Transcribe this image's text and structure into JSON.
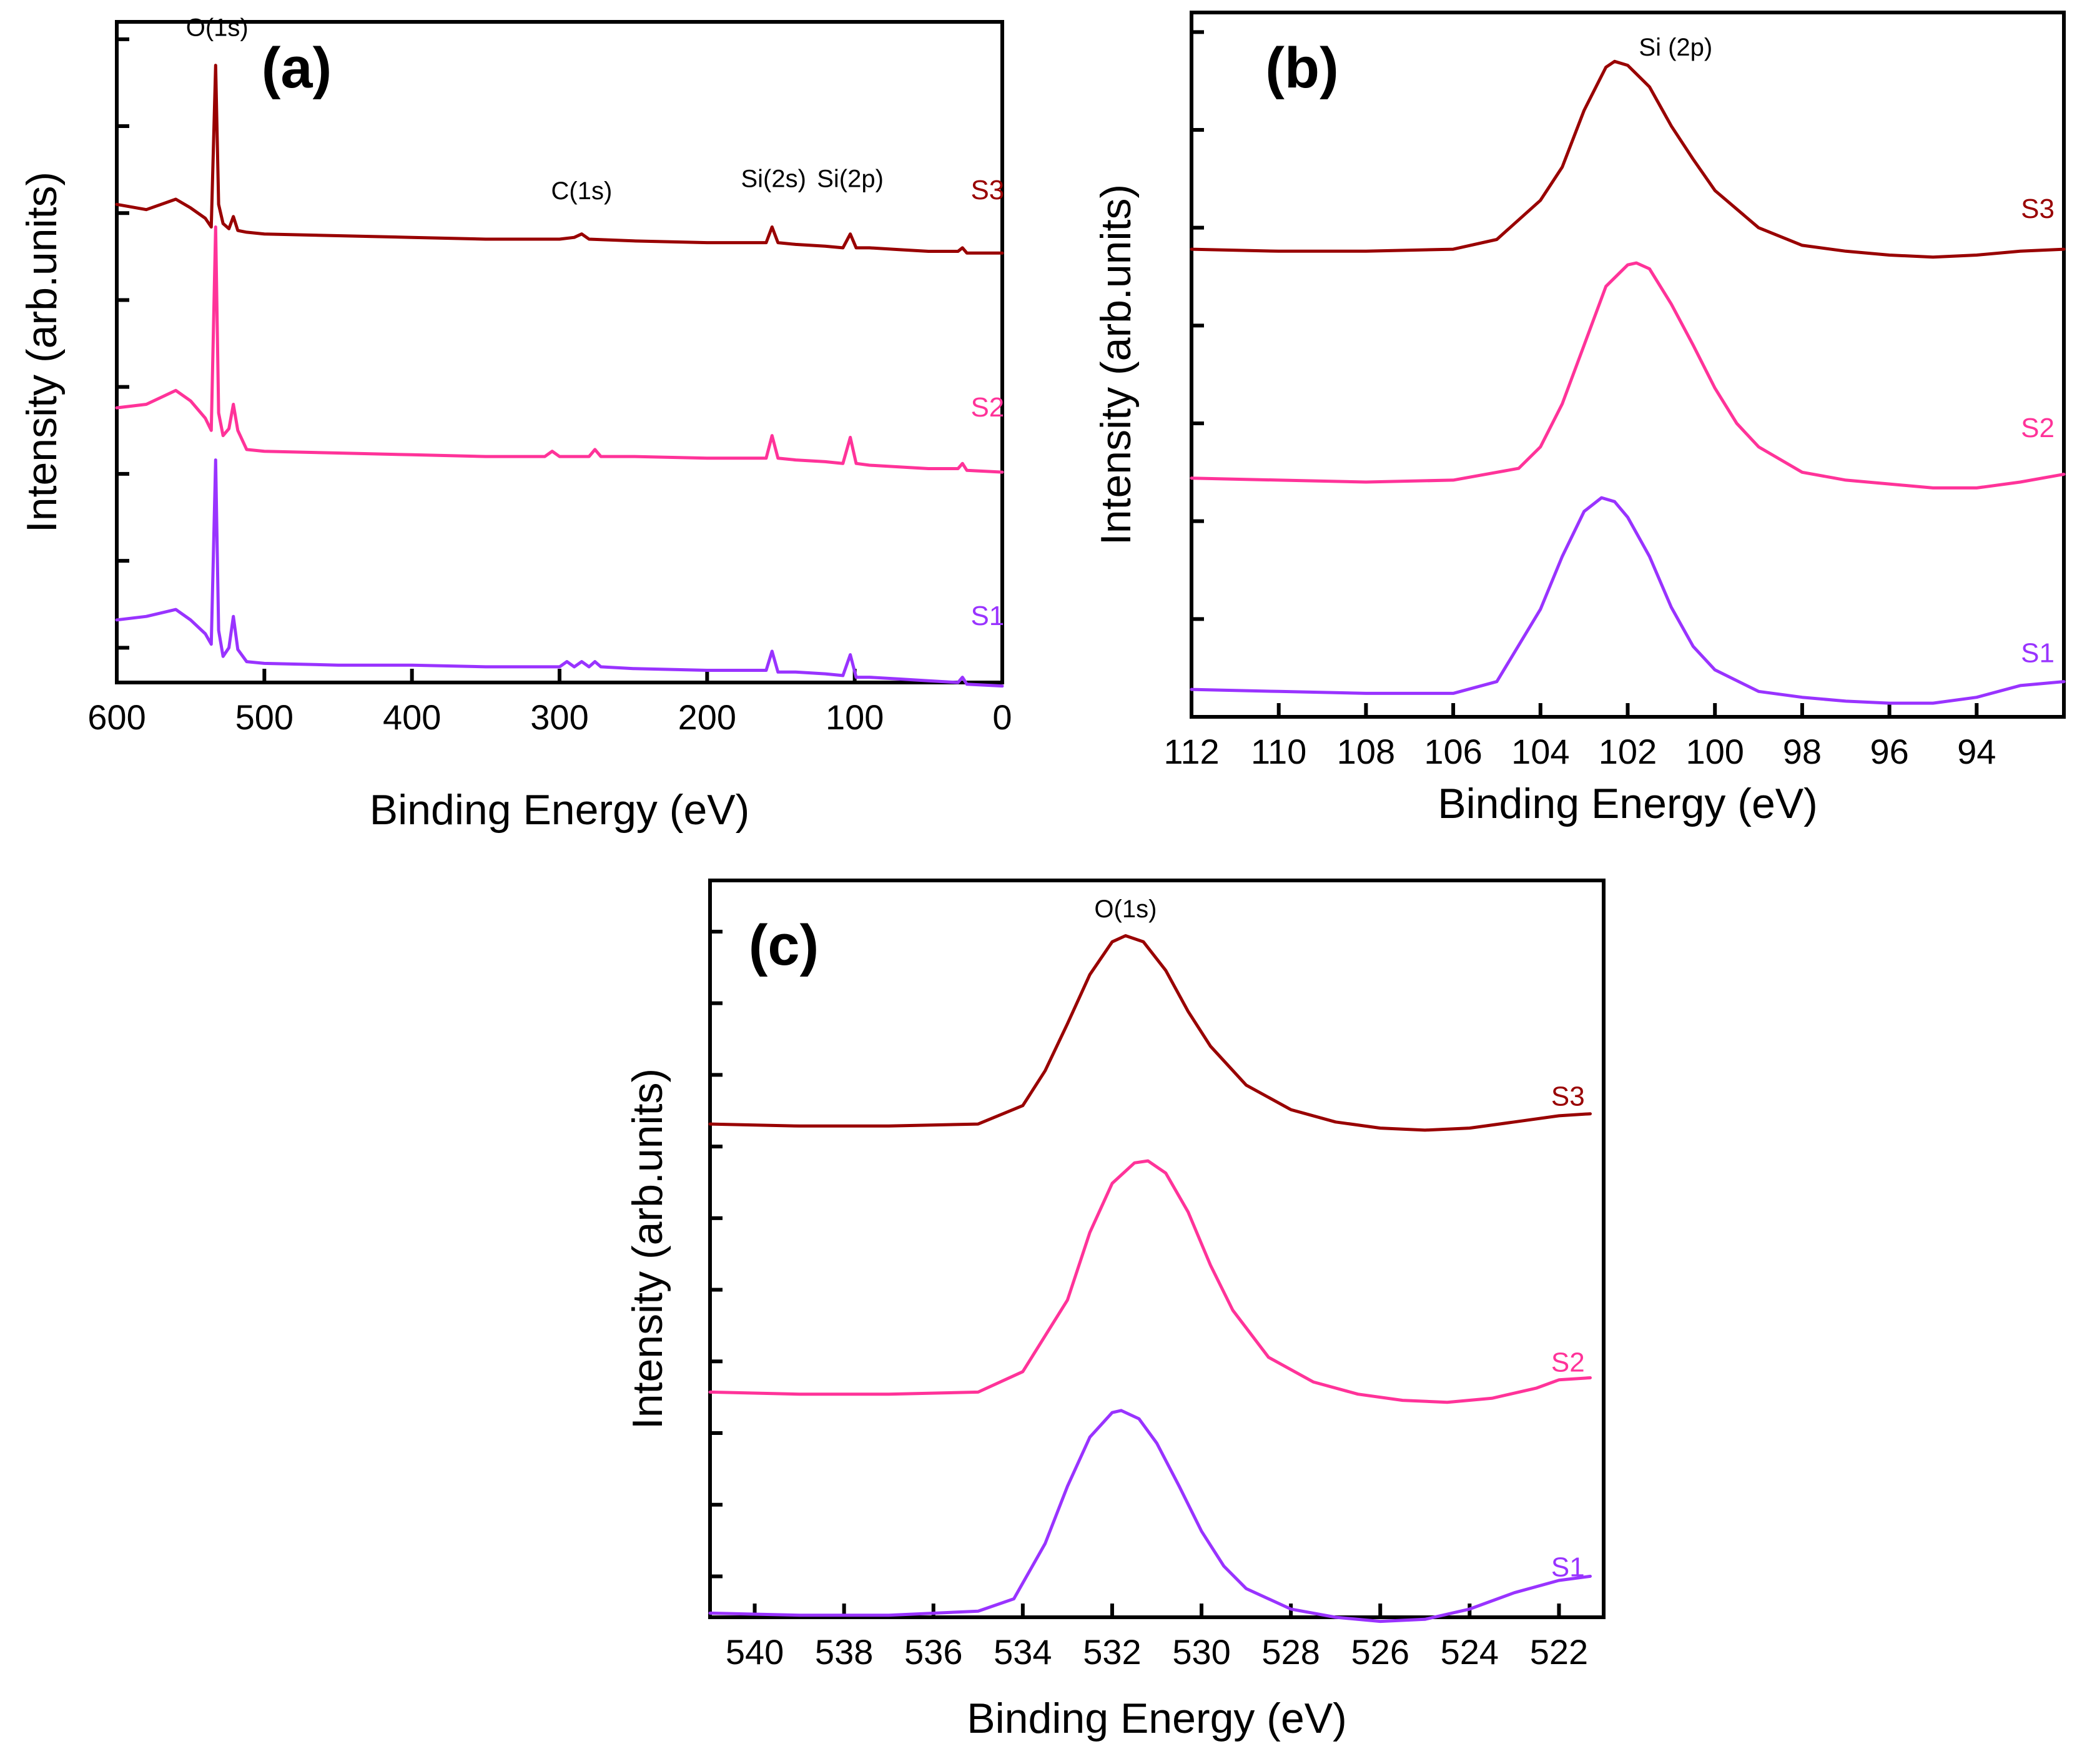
{
  "colors": {
    "S1": "#9933ff",
    "S2": "#ff3399",
    "S3": "#990000",
    "axis": "#000000"
  },
  "chart_data": [
    {
      "id": "a",
      "type": "line",
      "panel_label": "(a)",
      "xlabel": "Binding Energy (eV)",
      "ylabel": "Intensity (arb.units)",
      "xlim": [
        600,
        0
      ],
      "xticks": [
        600,
        500,
        400,
        300,
        200,
        100,
        0
      ],
      "xtick_labels": [
        "600",
        "500",
        "400",
        "300",
        "200",
        "100",
        "0"
      ],
      "ylim": [
        0,
        3.8
      ],
      "y_minor_ticks": [
        0.2,
        0.7,
        1.2,
        1.7,
        2.2,
        2.7,
        3.2,
        3.7
      ],
      "peak_labels": [
        {
          "text": "O(1s)",
          "x": 532,
          "y": 3.72
        },
        {
          "text": "C(1s)",
          "x": 285,
          "y": 2.78
        },
        {
          "text": "Si(2s)",
          "x": 155,
          "y": 2.85
        },
        {
          "text": "Si(2p)",
          "x": 103,
          "y": 2.85
        }
      ],
      "series": [
        {
          "name": "S3",
          "color_key": "S3",
          "label_x": 10,
          "label_y": 2.78,
          "x": [
            600,
            580,
            560,
            550,
            540,
            536,
            533,
            531,
            528,
            524,
            521,
            518,
            512,
            500,
            450,
            400,
            350,
            300,
            290,
            285,
            280,
            250,
            200,
            160,
            156,
            152,
            140,
            120,
            108,
            103,
            99,
            90,
            70,
            50,
            30,
            27,
            24,
            0
          ],
          "y": [
            2.75,
            2.72,
            2.78,
            2.73,
            2.67,
            2.62,
            3.55,
            2.75,
            2.64,
            2.61,
            2.68,
            2.6,
            2.59,
            2.58,
            2.57,
            2.56,
            2.55,
            2.55,
            2.56,
            2.58,
            2.55,
            2.54,
            2.53,
            2.53,
            2.62,
            2.53,
            2.52,
            2.51,
            2.5,
            2.58,
            2.5,
            2.5,
            2.49,
            2.48,
            2.48,
            2.5,
            2.47,
            2.47
          ]
        },
        {
          "name": "S2",
          "color_key": "S2",
          "label_x": 10,
          "label_y": 1.53,
          "x": [
            600,
            580,
            560,
            550,
            540,
            536,
            533,
            531,
            528,
            524,
            521,
            518,
            512,
            500,
            450,
            400,
            350,
            310,
            305,
            300,
            280,
            276,
            272,
            250,
            200,
            160,
            156,
            152,
            140,
            120,
            108,
            103,
            99,
            90,
            70,
            50,
            30,
            27,
            24,
            0
          ],
          "y": [
            1.58,
            1.6,
            1.68,
            1.62,
            1.52,
            1.45,
            2.62,
            1.55,
            1.42,
            1.46,
            1.6,
            1.45,
            1.34,
            1.33,
            1.32,
            1.31,
            1.3,
            1.3,
            1.33,
            1.3,
            1.3,
            1.34,
            1.3,
            1.3,
            1.29,
            1.29,
            1.42,
            1.29,
            1.28,
            1.27,
            1.26,
            1.41,
            1.26,
            1.25,
            1.24,
            1.23,
            1.23,
            1.26,
            1.22,
            1.21
          ]
        },
        {
          "name": "S1",
          "color_key": "S1",
          "label_x": 10,
          "label_y": 0.33,
          "x": [
            600,
            580,
            560,
            550,
            540,
            536,
            533,
            531,
            528,
            524,
            521,
            518,
            512,
            500,
            450,
            400,
            350,
            300,
            295,
            290,
            285,
            280,
            276,
            272,
            250,
            200,
            160,
            156,
            152,
            140,
            120,
            108,
            103,
            99,
            90,
            70,
            50,
            30,
            27,
            24,
            0
          ],
          "y": [
            0.36,
            0.38,
            0.42,
            0.36,
            0.28,
            0.22,
            1.28,
            0.3,
            0.15,
            0.2,
            0.38,
            0.19,
            0.12,
            0.11,
            0.1,
            0.1,
            0.09,
            0.09,
            0.12,
            0.09,
            0.12,
            0.09,
            0.12,
            0.09,
            0.08,
            0.07,
            0.07,
            0.18,
            0.06,
            0.06,
            0.05,
            0.04,
            0.16,
            0.03,
            0.03,
            0.02,
            0.01,
            0.0,
            0.03,
            -0.01,
            -0.02
          ]
        }
      ]
    },
    {
      "id": "b",
      "type": "line",
      "panel_label": "(b)",
      "xlabel": "Binding Energy (eV)",
      "ylabel": "Intensity (arb.units)",
      "xlim": [
        112,
        92
      ],
      "xticks": [
        112,
        110,
        108,
        106,
        104,
        102,
        100,
        98,
        96,
        94
      ],
      "xtick_labels": [
        "112",
        "110",
        "108",
        "106",
        "104",
        "102",
        "100",
        "98",
        "96",
        "94"
      ],
      "ylim": [
        0,
        3.6
      ],
      "y_minor_ticks": [
        0.5,
        1.0,
        1.5,
        2.0,
        2.5,
        3.0,
        3.5
      ],
      "peak_labels": [
        {
          "text": "Si (2p)",
          "x": 100.9,
          "y": 3.38
        }
      ],
      "series": [
        {
          "name": "S3",
          "color_key": "S3",
          "label_x": 92.6,
          "label_y": 2.55,
          "center": 102.3,
          "sigma": 1.55,
          "amp": 0.95,
          "base_left": 2.4,
          "base_right": 2.4,
          "dip_center": 95.0,
          "dip_sigma": 1.6,
          "dip_amp": -0.03,
          "x": [
            112,
            110,
            108,
            106,
            105,
            104,
            103.5,
            103,
            102.5,
            102.3,
            102,
            101.5,
            101,
            100.5,
            100,
            99,
            98,
            97,
            96,
            95,
            94,
            93,
            92
          ],
          "y": [
            2.39,
            2.38,
            2.38,
            2.39,
            2.44,
            2.64,
            2.81,
            3.1,
            3.32,
            3.35,
            3.33,
            3.22,
            3.02,
            2.85,
            2.69,
            2.5,
            2.41,
            2.38,
            2.36,
            2.35,
            2.36,
            2.38,
            2.39
          ]
        },
        {
          "name": "S2",
          "color_key": "S2",
          "label_x": 92.6,
          "label_y": 1.43,
          "x": [
            112,
            110,
            108,
            106,
            104.5,
            104,
            103.5,
            103,
            102.5,
            102,
            101.8,
            101.5,
            101,
            100.5,
            100,
            99.5,
            99,
            98,
            97,
            96,
            95,
            94,
            93,
            92
          ],
          "y": [
            1.22,
            1.21,
            1.2,
            1.21,
            1.27,
            1.38,
            1.6,
            1.9,
            2.2,
            2.31,
            2.32,
            2.29,
            2.11,
            1.9,
            1.68,
            1.5,
            1.38,
            1.25,
            1.21,
            1.19,
            1.17,
            1.17,
            1.2,
            1.24
          ]
        },
        {
          "name": "S1",
          "color_key": "S1",
          "label_x": 92.6,
          "label_y": 0.28,
          "x": [
            112,
            110,
            108,
            106,
            105,
            104,
            103.5,
            103,
            102.6,
            102.3,
            102,
            101.5,
            101,
            100.5,
            100,
            99,
            98,
            97,
            96,
            95,
            94,
            93,
            92
          ],
          "y": [
            0.14,
            0.13,
            0.12,
            0.12,
            0.18,
            0.55,
            0.82,
            1.05,
            1.12,
            1.1,
            1.02,
            0.82,
            0.56,
            0.36,
            0.24,
            0.13,
            0.1,
            0.08,
            0.07,
            0.07,
            0.1,
            0.16,
            0.18
          ]
        }
      ]
    },
    {
      "id": "c",
      "type": "line",
      "panel_label": "(c)",
      "xlabel": "Binding Energy (eV)",
      "ylabel": "Intensity (arb.units)",
      "xlim": [
        541,
        521
      ],
      "xticks": [
        540,
        538,
        536,
        534,
        532,
        530,
        528,
        526,
        524,
        522
      ],
      "xtick_labels": [
        "540",
        "538",
        "536",
        "534",
        "532",
        "530",
        "528",
        "526",
        "524",
        "522"
      ],
      "ylim": [
        0,
        3.6
      ],
      "y_minor_ticks": [
        0.2,
        0.55,
        0.9,
        1.25,
        1.6,
        1.95,
        2.3,
        2.65,
        3.0,
        3.35
      ],
      "peak_labels": [
        {
          "text": "O(1s)",
          "x": 531.7,
          "y": 3.42
        }
      ],
      "series": [
        {
          "name": "S3",
          "color_key": "S3",
          "label_x": 521.8,
          "label_y": 2.5,
          "x": [
            541,
            539,
            537,
            535,
            534,
            533.5,
            533,
            532.5,
            532,
            531.7,
            531.3,
            530.8,
            530.3,
            529.8,
            529,
            528,
            527,
            526,
            525,
            524,
            523,
            522,
            521.3
          ],
          "y": [
            2.41,
            2.4,
            2.4,
            2.41,
            2.5,
            2.67,
            2.9,
            3.14,
            3.3,
            3.33,
            3.3,
            3.16,
            2.96,
            2.79,
            2.6,
            2.48,
            2.42,
            2.39,
            2.38,
            2.39,
            2.42,
            2.45,
            2.46
          ]
        },
        {
          "name": "S2",
          "color_key": "S2",
          "label_x": 521.8,
          "label_y": 1.2,
          "x": [
            541,
            539,
            537,
            535,
            534,
            533,
            532.5,
            532,
            531.5,
            531.2,
            530.8,
            530.3,
            529.8,
            529.3,
            528.5,
            527.5,
            526.5,
            525.5,
            524.5,
            523.5,
            522.5,
            522,
            521.3
          ],
          "y": [
            1.1,
            1.09,
            1.09,
            1.1,
            1.2,
            1.55,
            1.88,
            2.12,
            2.22,
            2.23,
            2.17,
            1.98,
            1.72,
            1.5,
            1.27,
            1.15,
            1.09,
            1.06,
            1.05,
            1.07,
            1.12,
            1.16,
            1.17
          ]
        },
        {
          "name": "S1",
          "color_key": "S1",
          "label_x": 521.8,
          "label_y": 0.2,
          "x": [
            541,
            539,
            537,
            535,
            534.2,
            533.5,
            533,
            532.5,
            532,
            531.8,
            531.4,
            531,
            530.5,
            530,
            529.5,
            529,
            528,
            527,
            526,
            525,
            524,
            523,
            522,
            521.3
          ],
          "y": [
            0.02,
            0.01,
            0.01,
            0.03,
            0.09,
            0.36,
            0.64,
            0.88,
            1.0,
            1.01,
            0.97,
            0.85,
            0.64,
            0.42,
            0.25,
            0.14,
            0.04,
            0.0,
            -0.02,
            -0.01,
            0.04,
            0.12,
            0.18,
            0.2
          ]
        }
      ]
    }
  ]
}
